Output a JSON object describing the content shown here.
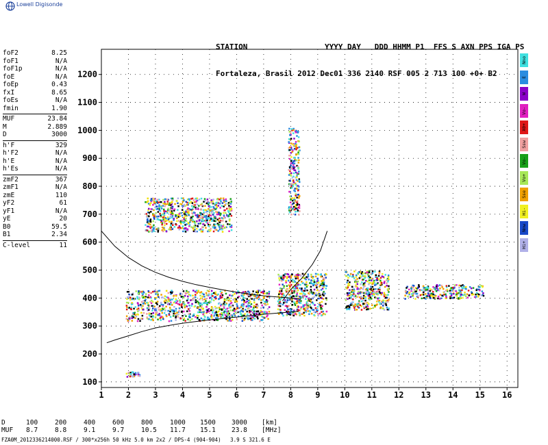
{
  "app": {
    "brand": "Lowell Digisonde",
    "logo_icon": "globe-icon"
  },
  "header": {
    "line1": "STATION                 YYYY DAY   DDD HHMM P1  FFS S AXN PPS IGA PS",
    "line2": "Fortaleza, Brasil 2012 Dec01 336 2140 RSF 005 2 713 100 +0+ B2"
  },
  "params": {
    "group1": [
      {
        "name": "foF2",
        "value": "8.25"
      },
      {
        "name": "foF1",
        "value": "N/A"
      },
      {
        "name": "foF1p",
        "value": "N/A"
      },
      {
        "name": "foE",
        "value": "N/A"
      },
      {
        "name": "foEp",
        "value": "0.43"
      },
      {
        "name": "fxI",
        "value": "8.65"
      },
      {
        "name": "foEs",
        "value": "N/A"
      },
      {
        "name": "fmin",
        "value": "1.90"
      }
    ],
    "group2": [
      {
        "name": "MUF",
        "value": "23.84"
      },
      {
        "name": "M",
        "value": "2.889"
      },
      {
        "name": "D",
        "value": "3000"
      }
    ],
    "group3": [
      {
        "name": "h'F",
        "value": "329"
      },
      {
        "name": "h'F2",
        "value": "N/A"
      },
      {
        "name": "h'E",
        "value": "N/A"
      },
      {
        "name": "h'Es",
        "value": "N/A"
      }
    ],
    "group4": [
      {
        "name": "zmF2",
        "value": "367"
      },
      {
        "name": "zmF1",
        "value": "N/A"
      },
      {
        "name": "zmE",
        "value": "110"
      },
      {
        "name": "yF2",
        "value": "61"
      },
      {
        "name": "yF1",
        "value": "N/A"
      },
      {
        "name": "yE",
        "value": "20"
      },
      {
        "name": "B0",
        "value": "59.5"
      },
      {
        "name": "B1",
        "value": "2.34"
      }
    ],
    "group5": [
      {
        "name": "C-level",
        "value": "11"
      }
    ]
  },
  "legend": [
    {
      "label": "Nno",
      "color": "#3fe0e0"
    },
    {
      "label": "E",
      "color": "#2a8ce0"
    },
    {
      "label": "W",
      "color": "#8a00c8"
    },
    {
      "label": "Vo-",
      "color": "#e020c0"
    },
    {
      "label": "X0+",
      "color": "#e01818"
    },
    {
      "label": "Ssw",
      "color": "#f0a0a0"
    },
    {
      "label": "Vo-",
      "color": "#18a018"
    },
    {
      "label": "Vo+",
      "color": "#a8e858"
    },
    {
      "label": "Sse",
      "color": "#f0a000"
    },
    {
      "label": "Hi-",
      "color": "#f0f020"
    },
    {
      "label": "Nnw",
      "color": "#1848c8"
    },
    {
      "label": "Hi+",
      "color": "#b0b0e8"
    }
  ],
  "dtable": {
    "row1": [
      "D",
      "100",
      "200",
      "400",
      "600",
      "800",
      "1000",
      "1500",
      "3000",
      "[km]"
    ],
    "row2": [
      "MUF",
      "8.7",
      "8.8",
      "9.1",
      "9.7",
      "10.5",
      "11.7",
      "15.1",
      "23.8",
      "[MHz]"
    ]
  },
  "footer": "FZA0M_2012336214000.RSF / 300*x256h 50 kHz 5.0 km 2x2 / DPS-4 (904-904)   3.9 S 321.6 E",
  "chart_data": {
    "type": "scatter",
    "title": "",
    "xlabel": "",
    "ylabel": "",
    "xlim": [
      1,
      16.4
    ],
    "ylim": [
      80,
      1290
    ],
    "x_ticks": [
      1,
      2,
      3,
      4,
      5,
      6,
      7,
      8,
      9,
      10,
      11,
      12,
      13,
      14,
      15,
      16
    ],
    "y_ticks": [
      100,
      200,
      300,
      400,
      500,
      600,
      700,
      800,
      900,
      1000,
      1100,
      1200
    ],
    "grid": true,
    "series": [
      {
        "points": [
          [
            1.2,
            240
          ],
          [
            1.5,
            250
          ],
          [
            2,
            265
          ],
          [
            2.5,
            280
          ],
          [
            3,
            293
          ],
          [
            3.5,
            302
          ],
          [
            4,
            310
          ],
          [
            4.5,
            316
          ],
          [
            5,
            322
          ],
          [
            5.5,
            327
          ],
          [
            6,
            332
          ],
          [
            6.5,
            337
          ],
          [
            7,
            342
          ],
          [
            7.5,
            346
          ],
          [
            8,
            350
          ],
          [
            8.3,
            353
          ]
        ]
      },
      {
        "points": [
          [
            1.0,
            640
          ],
          [
            1.5,
            585
          ],
          [
            2,
            545
          ],
          [
            2.5,
            515
          ],
          [
            3,
            492
          ],
          [
            3.5,
            474
          ],
          [
            4,
            460
          ],
          [
            4.5,
            448
          ],
          [
            5,
            438
          ],
          [
            5.5,
            429
          ],
          [
            6,
            421
          ],
          [
            6.5,
            414
          ],
          [
            7,
            408
          ],
          [
            7.5,
            404
          ],
          [
            8,
            400
          ],
          [
            8.3,
            398
          ]
        ]
      },
      {
        "points": [
          [
            7.7,
            390
          ],
          [
            8.0,
            430
          ],
          [
            8.4,
            470
          ],
          [
            8.8,
            520
          ],
          [
            9.1,
            570
          ],
          [
            9.35,
            640
          ]
        ]
      }
    ],
    "echo_regions": [
      {
        "x": [
          1.9,
          7.2
        ],
        "y": [
          320,
          430
        ]
      },
      {
        "x": [
          7.5,
          9.3
        ],
        "y": [
          340,
          490
        ]
      },
      {
        "x": [
          10.0,
          11.6
        ],
        "y": [
          360,
          500
        ]
      },
      {
        "x": [
          12.2,
          15.1
        ],
        "y": [
          400,
          450
        ]
      },
      {
        "x": [
          2.6,
          5.8
        ],
        "y": [
          640,
          760
        ]
      },
      {
        "x": [
          7.9,
          8.3
        ],
        "y": [
          700,
          1010
        ]
      },
      {
        "x": [
          1.9,
          2.4
        ],
        "y": [
          120,
          140
        ]
      }
    ]
  }
}
